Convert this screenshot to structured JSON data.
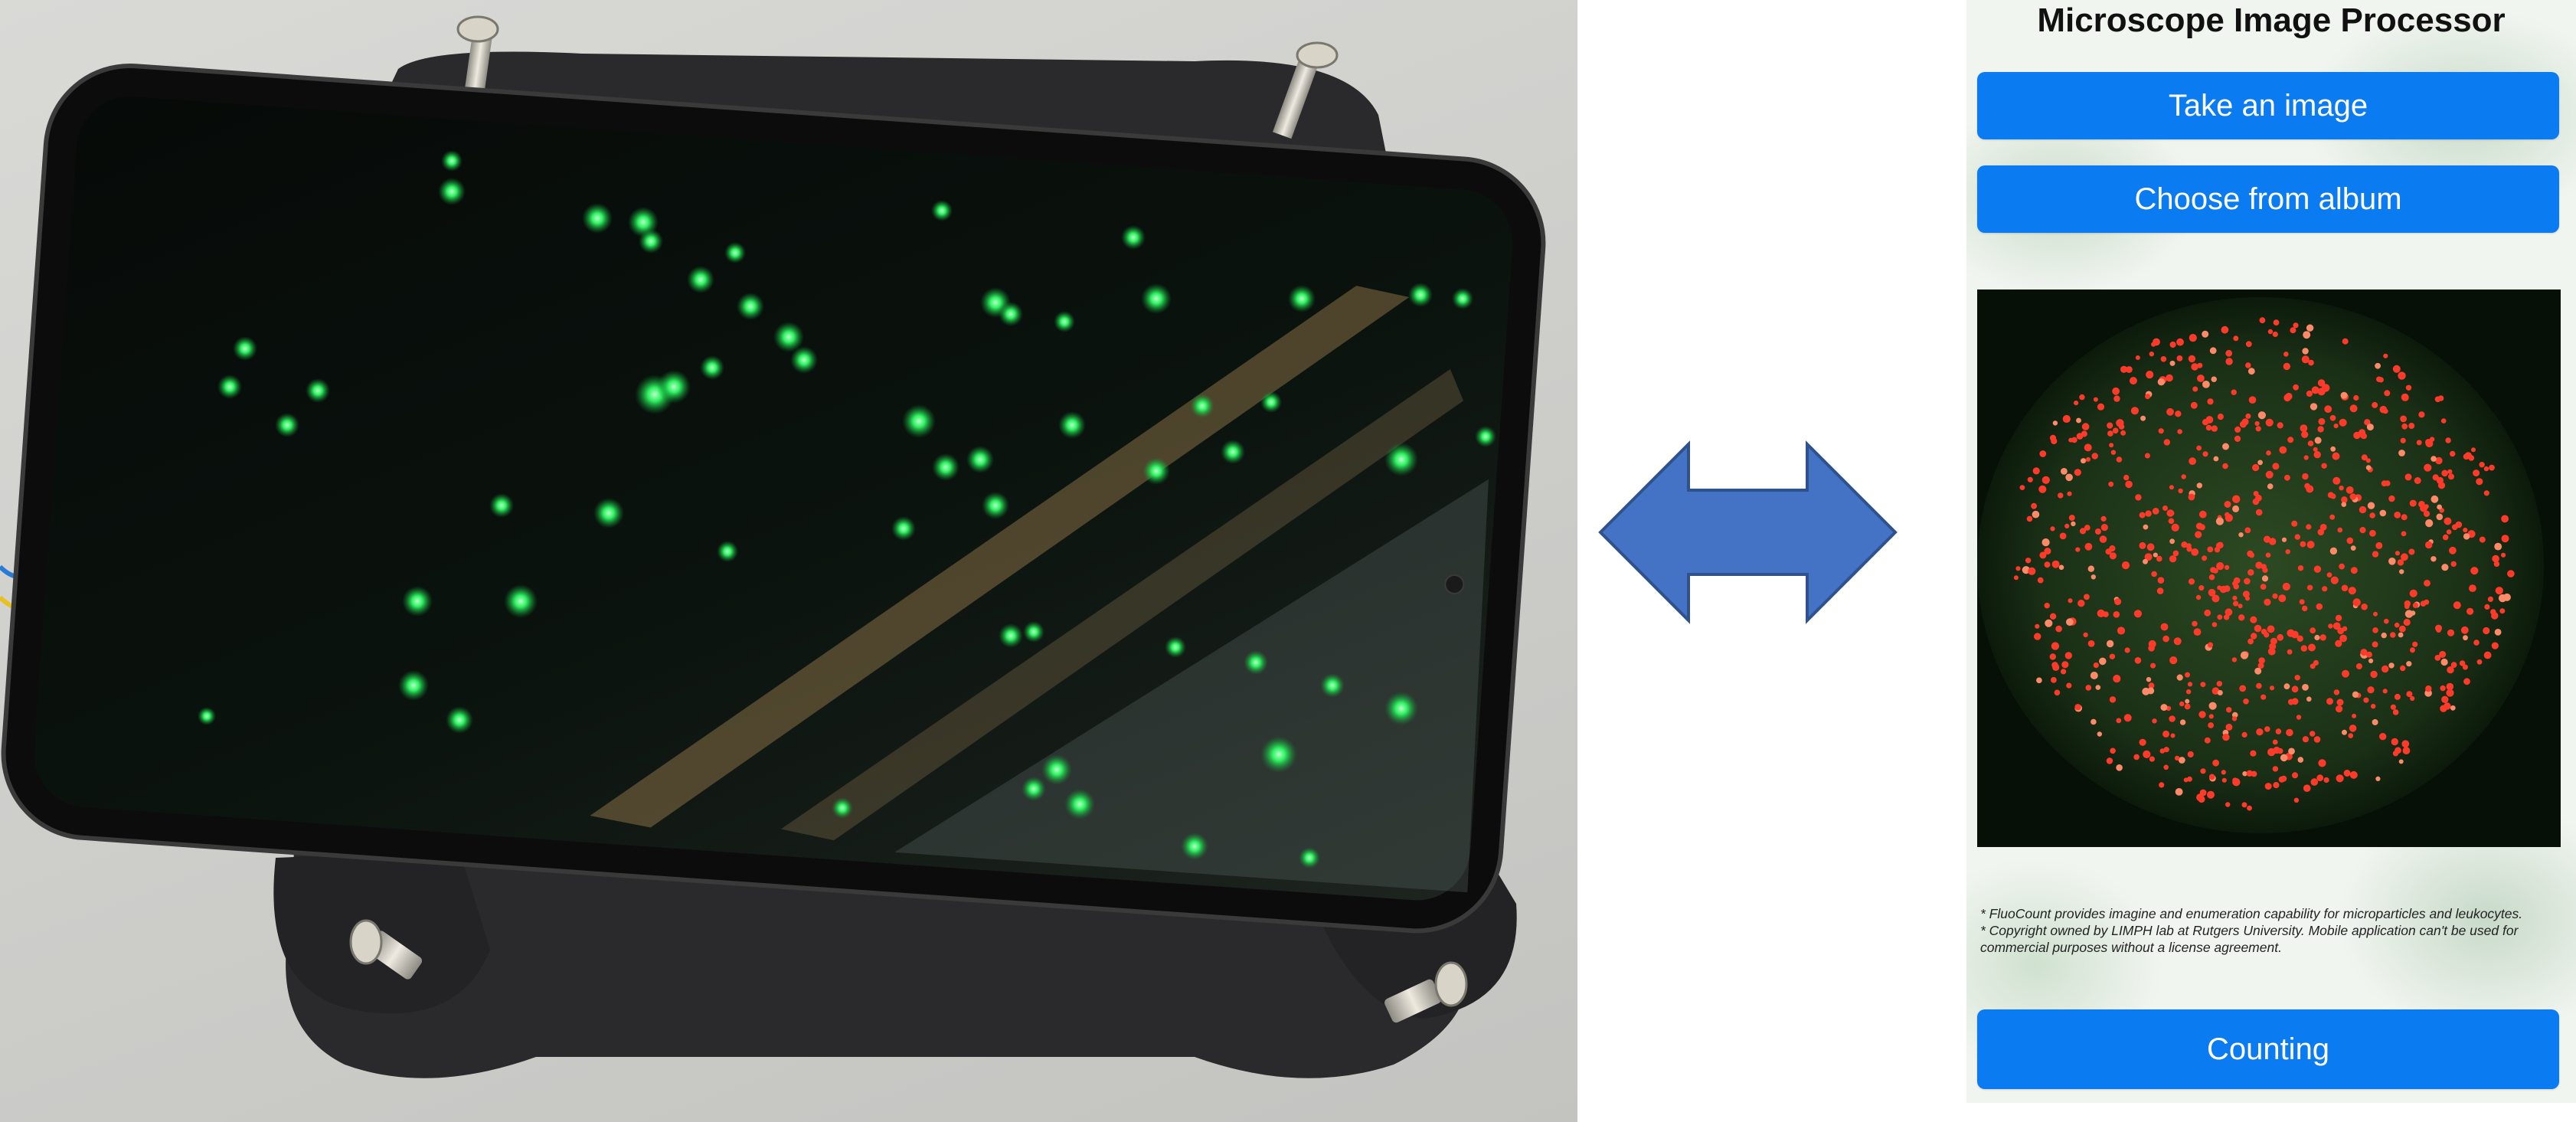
{
  "app": {
    "title": "Microscope Image Processor",
    "buttons": {
      "take_image": "Take an image",
      "choose_album": "Choose from album",
      "counting": "Counting"
    },
    "notes": [
      "* FluoCount provides imagine and enumeration capability for microparticles and leukocytes.",
      "* Copyright owned by LIMPH lab at Rutgers University. Mobile application can't be used for commercial purposes without a license agreement."
    ]
  },
  "arrow": {
    "direction": "bidirectional",
    "color": "#4472c4"
  },
  "colors": {
    "accent_button": "#0a7bf0",
    "fluorescent_green": "#25e35a",
    "detected_marker": "#ff3a2a"
  }
}
